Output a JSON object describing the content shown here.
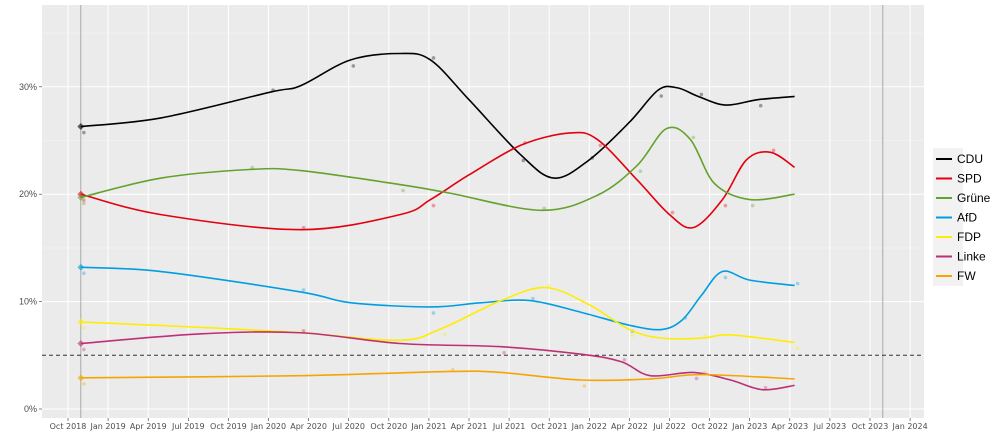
{
  "chart_data": {
    "type": "line",
    "title": "",
    "xlabel": "",
    "ylabel": "",
    "xlim": [
      2018.6,
      2024.1
    ],
    "ylim": [
      0,
      37
    ],
    "y_ticks": [
      {
        "v": 0,
        "label": "0%"
      },
      {
        "v": 10,
        "label": "10%"
      },
      {
        "v": 20,
        "label": "20%"
      },
      {
        "v": 30,
        "label": "30%"
      }
    ],
    "x_ticks": [
      {
        "v": 2018.75,
        "label": "Oct 2018"
      },
      {
        "v": 2019.0,
        "label": "Jan 2019"
      },
      {
        "v": 2019.25,
        "label": "Apr 2019"
      },
      {
        "v": 2019.5,
        "label": "Jul 2019"
      },
      {
        "v": 2019.75,
        "label": "Oct 2019"
      },
      {
        "v": 2020.0,
        "label": "Jan 2020"
      },
      {
        "v": 2020.25,
        "label": "Apr 2020"
      },
      {
        "v": 2020.5,
        "label": "Jul 2020"
      },
      {
        "v": 2020.75,
        "label": "Oct 2020"
      },
      {
        "v": 2021.0,
        "label": "Jan 2021"
      },
      {
        "v": 2021.25,
        "label": "Apr 2021"
      },
      {
        "v": 2021.5,
        "label": "Jul 2021"
      },
      {
        "v": 2021.75,
        "label": "Oct 2021"
      },
      {
        "v": 2022.0,
        "label": "Jan 2022"
      },
      {
        "v": 2022.25,
        "label": "Apr 2022"
      },
      {
        "v": 2022.5,
        "label": "Jul 2022"
      },
      {
        "v": 2022.75,
        "label": "Oct 2022"
      },
      {
        "v": 2023.0,
        "label": "Jan 2023"
      },
      {
        "v": 2023.25,
        "label": "Apr 2023"
      },
      {
        "v": 2023.5,
        "label": "Jul 2023"
      },
      {
        "v": 2023.75,
        "label": "Oct 2023"
      },
      {
        "v": 2024.0,
        "label": "Jan 2024"
      }
    ],
    "threshold": 5,
    "vlines": [
      2018.83,
      2023.83
    ],
    "grid": true,
    "legend_position": "right",
    "series": [
      {
        "name": "CDU",
        "color": "#000000",
        "x": [
          2018.83,
          2019.33,
          2020.01,
          2020.2,
          2020.51,
          2020.82,
          2021.01,
          2021.25,
          2021.57,
          2021.78,
          2022.0,
          2022.25,
          2022.43,
          2022.55,
          2022.68,
          2022.85,
          2023.05,
          2023.28
        ],
        "y": [
          26.3,
          27.1,
          29.5,
          30.1,
          32.5,
          33.1,
          32.5,
          28.8,
          23.7,
          21.5,
          23.2,
          26.7,
          29.7,
          29.9,
          29.1,
          28.3,
          28.8,
          29.1
        ]
      },
      {
        "name": "SPD",
        "color": "#e3000f",
        "x": [
          2018.83,
          2019.33,
          2020.2,
          2020.82,
          2021.01,
          2021.25,
          2021.58,
          2021.88,
          2022.05,
          2022.3,
          2022.5,
          2022.65,
          2022.83,
          2022.98,
          2023.13,
          2023.28
        ],
        "y": [
          20.0,
          18.1,
          16.7,
          18.1,
          19.5,
          21.8,
          24.6,
          25.7,
          25.1,
          21.3,
          18.1,
          16.9,
          19.5,
          23.2,
          23.9,
          22.5
        ]
      },
      {
        "name": "Grüne",
        "color": "#64a12d",
        "x": [
          2018.83,
          2019.33,
          2019.88,
          2020.2,
          2020.82,
          2021.13,
          2021.7,
          2022.05,
          2022.3,
          2022.48,
          2022.63,
          2022.78,
          2023.0,
          2023.28
        ],
        "y": [
          19.7,
          21.5,
          22.3,
          22.2,
          20.9,
          20.1,
          18.5,
          19.9,
          22.7,
          26.1,
          25.1,
          21.0,
          19.5,
          20.0
        ]
      },
      {
        "name": "AfD",
        "color": "#009ee0",
        "x": [
          2018.83,
          2019.33,
          2020.2,
          2020.51,
          2021.01,
          2021.33,
          2021.63,
          2021.95,
          2022.25,
          2022.45,
          2022.58,
          2022.7,
          2022.83,
          2023.0,
          2023.28
        ],
        "y": [
          13.2,
          12.8,
          10.9,
          9.9,
          9.5,
          9.9,
          10.1,
          9.0,
          7.8,
          7.4,
          8.3,
          10.6,
          12.8,
          12.0,
          11.5
        ]
      },
      {
        "name": "FDP",
        "color": "#ffed00",
        "x": [
          2018.83,
          2019.58,
          2020.2,
          2020.82,
          2021.08,
          2021.45,
          2021.73,
          2022.0,
          2022.25,
          2022.45,
          2022.7,
          2022.88,
          2023.28
        ],
        "y": [
          8.1,
          7.6,
          7.1,
          6.4,
          7.5,
          10.1,
          11.3,
          9.7,
          7.4,
          6.6,
          6.6,
          6.9,
          6.2
        ]
      },
      {
        "name": "Linke",
        "color": "#be3075",
        "x": [
          2018.83,
          2019.58,
          2020.2,
          2020.82,
          2021.45,
          2021.95,
          2022.2,
          2022.38,
          2022.65,
          2022.88,
          2023.08,
          2023.28
        ],
        "y": [
          6.1,
          7.0,
          7.1,
          6.1,
          5.8,
          5.1,
          4.4,
          3.1,
          3.4,
          2.7,
          1.8,
          2.2
        ]
      },
      {
        "name": "FW",
        "color": "#f7a400",
        "x": [
          2018.83,
          2020.2,
          2021.13,
          2021.45,
          2021.95,
          2022.38,
          2022.7,
          2023.28
        ],
        "y": [
          2.9,
          3.1,
          3.5,
          3.4,
          2.7,
          2.8,
          3.2,
          2.8
        ]
      }
    ]
  }
}
